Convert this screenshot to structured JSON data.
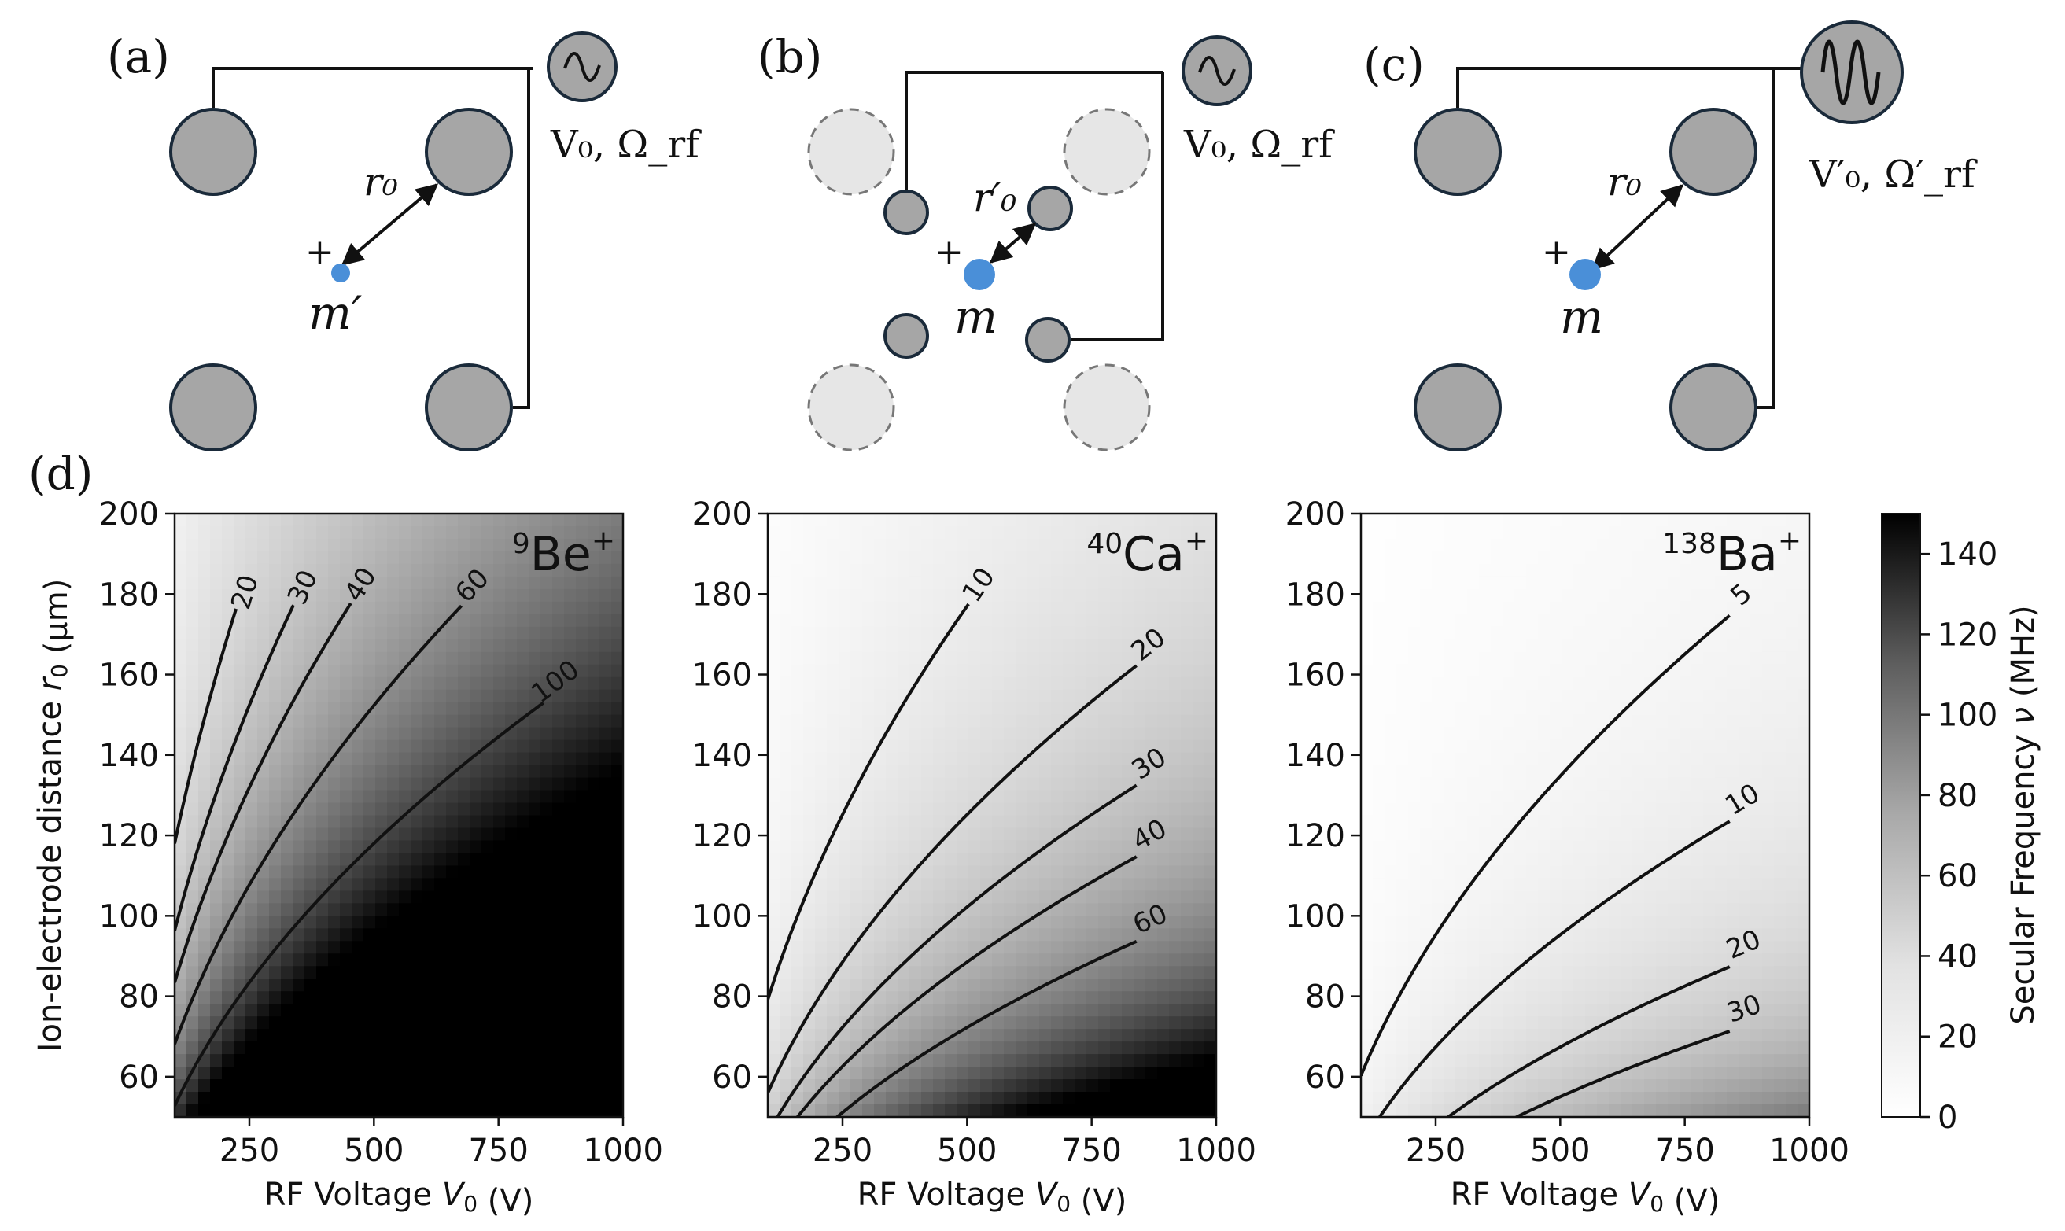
{
  "figure": {
    "panel_labels": [
      "(a)",
      "(b)",
      "(c)",
      "(d)"
    ],
    "schematics": [
      {
        "id": "a",
        "source_label": "V₀, Ω_rf",
        "distance_label": "r₀",
        "mass_label": "m′",
        "charge_label": "+"
      },
      {
        "id": "b",
        "source_label": "V₀, Ω_rf",
        "distance_label": "r′₀",
        "mass_label": "m",
        "charge_label": "+"
      },
      {
        "id": "c",
        "source_label": "V′₀, Ω′_rf",
        "distance_label": "r₀",
        "mass_label": "m",
        "charge_label": "+"
      }
    ],
    "colors": {
      "electrode": "#a6a6a6",
      "electrode_faded": "#e6e6e6",
      "ion": "#4a8fd8",
      "wire": "#111111"
    }
  },
  "chart_data": [
    {
      "type": "heatmap",
      "species_mass": "9",
      "species_symbol": "Be",
      "species_charge": "+",
      "xlabel_prefix": "RF Voltage ",
      "xlabel_var": "V",
      "xlabel_sub": "0",
      "xlabel_suffix": " (V)",
      "ylabel_prefix": "Ion-electrode distance ",
      "ylabel_var": "r",
      "ylabel_sub": "0",
      "ylabel_suffix": " (μm)",
      "xlim": [
        100,
        1000
      ],
      "ylim": [
        50,
        200
      ],
      "xticks": [
        250,
        500,
        750,
        1000
      ],
      "yticks": [
        60,
        80,
        100,
        120,
        140,
        160,
        180,
        200
      ],
      "mass_amu": 9,
      "contours": [
        20,
        30,
        40,
        60,
        100
      ],
      "contour_labels": [
        "20",
        "30",
        "40",
        "60",
        "100"
      ]
    },
    {
      "type": "heatmap",
      "species_mass": "40",
      "species_symbol": "Ca",
      "species_charge": "+",
      "xlabel_prefix": "RF Voltage ",
      "xlabel_var": "V",
      "xlabel_sub": "0",
      "xlabel_suffix": " (V)",
      "ylabel_prefix": "",
      "ylabel_var": "",
      "ylabel_sub": "",
      "ylabel_suffix": "",
      "xlim": [
        100,
        1000
      ],
      "ylim": [
        50,
        200
      ],
      "xticks": [
        250,
        500,
        750,
        1000
      ],
      "yticks": [
        60,
        80,
        100,
        120,
        140,
        160,
        180,
        200
      ],
      "mass_amu": 40,
      "contours": [
        10,
        20,
        30,
        40,
        60
      ],
      "contour_labels": [
        "10",
        "20",
        "30",
        "40",
        "60"
      ]
    },
    {
      "type": "heatmap",
      "species_mass": "138",
      "species_symbol": "Ba",
      "species_charge": "+",
      "xlabel_prefix": "RF Voltage ",
      "xlabel_var": "V",
      "xlabel_sub": "0",
      "xlabel_suffix": " (V)",
      "ylabel_prefix": "",
      "ylabel_var": "",
      "ylabel_sub": "",
      "ylabel_suffix": "",
      "xlim": [
        100,
        1000
      ],
      "ylim": [
        50,
        200
      ],
      "xticks": [
        250,
        500,
        750,
        1000
      ],
      "yticks": [
        60,
        80,
        100,
        120,
        140,
        160,
        180,
        200
      ],
      "mass_amu": 138,
      "contours": [
        5,
        10,
        20,
        30
      ],
      "contour_labels": [
        "5",
        "10",
        "20",
        "30"
      ]
    }
  ],
  "colorbar": {
    "label_prefix": "Secular Frequency ",
    "label_var": "ν",
    "label_suffix": " (MHz)",
    "range": [
      0,
      150
    ],
    "ticks": [
      0,
      20,
      40,
      60,
      80,
      100,
      120,
      140
    ],
    "colormap": "Greys"
  }
}
